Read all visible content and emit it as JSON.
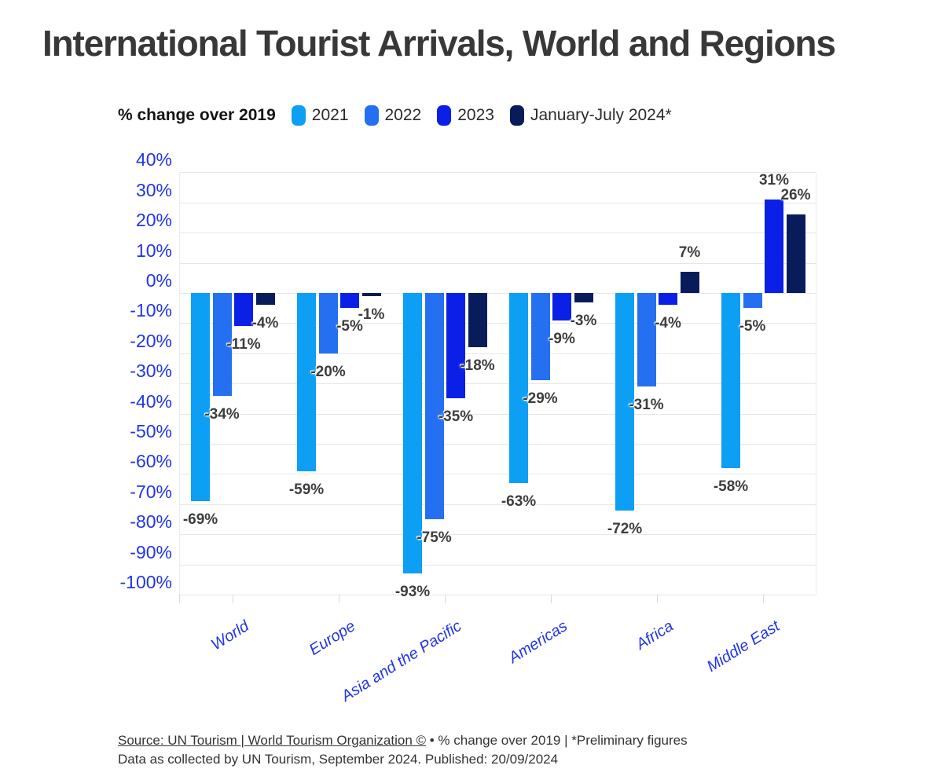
{
  "title": "International Tourist Arrivals, World and Regions",
  "legend": {
    "label": "% change over 2019"
  },
  "chart_data": {
    "type": "bar",
    "title": "International Tourist Arrivals, World and Regions",
    "subtitle": "% change over 2019",
    "categories": [
      "World",
      "Europe",
      "Asia and the Pacific",
      "Americas",
      "Africa",
      "Middle East"
    ],
    "series": [
      {
        "name": "2021",
        "color": "#0C9FF3",
        "values": [
          -69,
          -59,
          -93,
          -63,
          -72,
          -58
        ]
      },
      {
        "name": "2022",
        "color": "#2470F0",
        "values": [
          -34,
          -20,
          -75,
          -29,
          -31,
          -5
        ]
      },
      {
        "name": "2023",
        "color": "#0B20E6",
        "values": [
          -11,
          -5,
          -35,
          -9,
          -4,
          31
        ]
      },
      {
        "name": "January-July 2024*",
        "color": "#081C5C",
        "values": [
          -4,
          -1,
          -18,
          -3,
          7,
          26
        ]
      }
    ],
    "unit": "%",
    "yticks": [
      40,
      30,
      20,
      10,
      0,
      -10,
      -20,
      -30,
      -40,
      -50,
      -60,
      -70,
      -80,
      -90,
      -100
    ],
    "ylim": [
      -100,
      40
    ],
    "grid": true,
    "legend_position": "top",
    "axis_text_color": "#2135e4"
  },
  "footer": {
    "source_link": "Source: UN Tourism | World Tourism Organization ©",
    "source_rest": " • % change over 2019 | *Preliminary figures",
    "line2": "Data as collected by UN Tourism, September 2024. Published: 20/09/2024"
  }
}
